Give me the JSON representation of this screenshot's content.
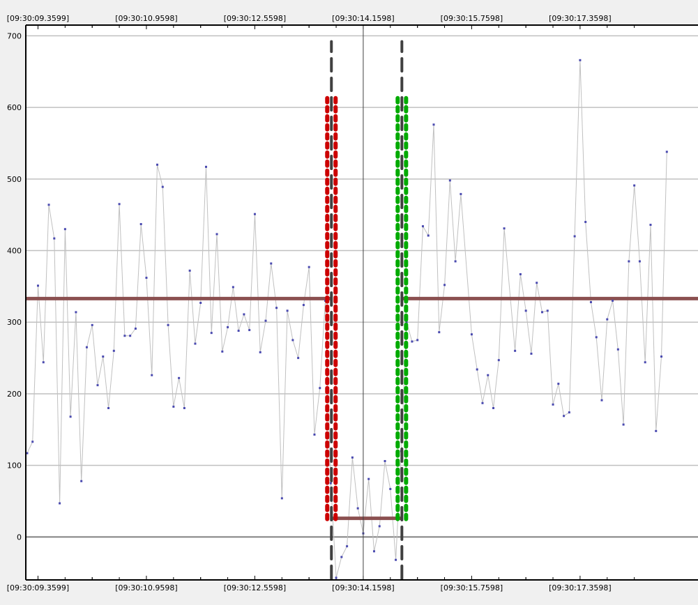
{
  "colors": {
    "background": "#f0f0f0",
    "plot_background": "#ffffff",
    "grid": "#c0c0c0",
    "zero_line": "#808080",
    "series_line": "#c0c0c0",
    "series_point": "#4a4ab0",
    "level_line": "#8b5050",
    "marker_red": "#cc0000",
    "marker_green": "#00aa00",
    "marker_dark": "#404040",
    "cursor": "#404040"
  },
  "chart_data": {
    "type": "line",
    "title": "",
    "xlabel": "",
    "ylabel": "",
    "ylim": [
      -60,
      715
    ],
    "y_ticks": [
      0,
      100,
      200,
      300,
      400,
      500,
      600,
      700
    ],
    "y_tick_labels": [
      "0",
      "100",
      "200",
      "300",
      "400",
      "500",
      "600",
      "700"
    ],
    "x_time_range": [
      "09:30:09.18",
      "09:30:19.10"
    ],
    "x_tick_times": [
      "09:30:09.3599",
      "09:30:10.9598",
      "09:30:12.5598",
      "09:30:14.1598",
      "09:30:15.7598",
      "09:30:17.3598"
    ],
    "x_tick_labels": [
      "[09:30:09.3599]",
      "[09:30:10.9598]",
      "[09:30:12.5598]",
      "[09:30:14.1598]",
      "[09:30:15.7598]",
      "[09:30:17.3598]"
    ],
    "grid": true,
    "cursor_time": "09:30:14.1598",
    "series": [
      {
        "points": [
          [
            "09:30:09.20",
            117
          ],
          [
            "09:30:09.28",
            133
          ],
          [
            "09:30:09.36",
            351
          ],
          [
            "09:30:09.44",
            244
          ],
          [
            "09:30:09.52",
            464
          ],
          [
            "09:30:09.60",
            417
          ],
          [
            "09:30:09.68",
            47
          ],
          [
            "09:30:09.76",
            430
          ],
          [
            "09:30:09.84",
            168
          ],
          [
            "09:30:09.92",
            314
          ],
          [
            "09:30:10.00",
            78
          ],
          [
            "09:30:10.08",
            265
          ],
          [
            "09:30:10.16",
            296
          ],
          [
            "09:30:10.24",
            212
          ],
          [
            "09:30:10.32",
            252
          ],
          [
            "09:30:10.40",
            180
          ],
          [
            "09:30:10.48",
            260
          ],
          [
            "09:30:10.56",
            465
          ],
          [
            "09:30:10.64",
            281
          ],
          [
            "09:30:10.72",
            281
          ],
          [
            "09:30:10.80",
            291
          ],
          [
            "09:30:10.88",
            437
          ],
          [
            "09:30:10.96",
            362
          ],
          [
            "09:30:11.04",
            226
          ],
          [
            "09:30:11.12",
            520
          ],
          [
            "09:30:11.20",
            489
          ],
          [
            "09:30:11.28",
            296
          ],
          [
            "09:30:11.36",
            182
          ],
          [
            "09:30:11.44",
            222
          ],
          [
            "09:30:11.52",
            180
          ],
          [
            "09:30:11.60",
            372
          ],
          [
            "09:30:11.68",
            270
          ],
          [
            "09:30:11.76",
            327
          ],
          [
            "09:30:11.84",
            517
          ],
          [
            "09:30:11.92",
            285
          ],
          [
            "09:30:12.00",
            423
          ],
          [
            "09:30:12.08",
            259
          ],
          [
            "09:30:12.16",
            293
          ],
          [
            "09:30:12.24",
            349
          ],
          [
            "09:30:12.32",
            288
          ],
          [
            "09:30:12.40",
            311
          ],
          [
            "09:30:12.48",
            289
          ],
          [
            "09:30:12.56",
            451
          ],
          [
            "09:30:12.64",
            258
          ],
          [
            "09:30:12.72",
            302
          ],
          [
            "09:30:12.80",
            382
          ],
          [
            "09:30:12.88",
            320
          ],
          [
            "09:30:12.96",
            54
          ],
          [
            "09:30:13.04",
            316
          ],
          [
            "09:30:13.12",
            275
          ],
          [
            "09:30:13.20",
            250
          ],
          [
            "09:30:13.28",
            324
          ],
          [
            "09:30:13.36",
            377
          ],
          [
            "09:30:13.44",
            143
          ],
          [
            "09:30:13.52",
            208
          ],
          [
            "09:30:13.60",
            330
          ],
          [
            "09:30:13.68",
            75
          ],
          [
            "09:30:13.76",
            -57
          ],
          [
            "09:30:13.84",
            -28
          ],
          [
            "09:30:13.92",
            -13
          ],
          [
            "09:30:14.00",
            111
          ],
          [
            "09:30:14.08",
            40
          ],
          [
            "09:30:14.16",
            5
          ],
          [
            "09:30:14.24",
            81
          ],
          [
            "09:30:14.32",
            -20
          ],
          [
            "09:30:14.40",
            15
          ],
          [
            "09:30:14.48",
            106
          ],
          [
            "09:30:14.56",
            67
          ],
          [
            "09:30:14.64",
            -32
          ],
          [
            "09:30:14.72",
            120
          ],
          [
            "09:30:14.80",
            300
          ],
          [
            "09:30:14.88",
            273
          ],
          [
            "09:30:14.96",
            275
          ],
          [
            "09:30:15.04",
            434
          ],
          [
            "09:30:15.12",
            421
          ],
          [
            "09:30:15.20",
            576
          ],
          [
            "09:30:15.28",
            286
          ],
          [
            "09:30:15.36",
            352
          ],
          [
            "09:30:15.44",
            498
          ],
          [
            "09:30:15.52",
            385
          ],
          [
            "09:30:15.60",
            479
          ],
          [
            "09:30:15.76",
            283
          ],
          [
            "09:30:15.84",
            234
          ],
          [
            "09:30:15.92",
            187
          ],
          [
            "09:30:16.00",
            226
          ],
          [
            "09:30:16.08",
            180
          ],
          [
            "09:30:16.16",
            247
          ],
          [
            "09:30:16.24",
            431
          ],
          [
            "09:30:16.40",
            260
          ],
          [
            "09:30:16.48",
            367
          ],
          [
            "09:30:16.56",
            316
          ],
          [
            "09:30:16.64",
            256
          ],
          [
            "09:30:16.72",
            355
          ],
          [
            "09:30:16.80",
            314
          ],
          [
            "09:30:16.88",
            316
          ],
          [
            "09:30:16.96",
            185
          ],
          [
            "09:30:17.04",
            214
          ],
          [
            "09:30:17.12",
            169
          ],
          [
            "09:30:17.20",
            174
          ],
          [
            "09:30:17.28",
            420
          ],
          [
            "09:30:17.36",
            666
          ],
          [
            "09:30:17.44",
            440
          ],
          [
            "09:30:17.52",
            328
          ],
          [
            "09:30:17.60",
            279
          ],
          [
            "09:30:17.68",
            191
          ],
          [
            "09:30:17.76",
            304
          ],
          [
            "09:30:17.84",
            330
          ],
          [
            "09:30:17.92",
            262
          ],
          [
            "09:30:18.00",
            157
          ],
          [
            "09:30:18.08",
            385
          ],
          [
            "09:30:18.16",
            491
          ],
          [
            "09:30:18.24",
            385
          ],
          [
            "09:30:18.32",
            244
          ],
          [
            "09:30:18.40",
            436
          ],
          [
            "09:30:18.48",
            148
          ],
          [
            "09:30:18.56",
            252
          ],
          [
            "09:30:18.64",
            538
          ]
        ]
      }
    ],
    "level_segments": [
      {
        "from": "09:30:09.18",
        "to": "09:30:13.69",
        "value": 333
      },
      {
        "from": "09:30:13.69",
        "to": "09:30:14.73",
        "value": 26
      },
      {
        "from": "09:30:14.73",
        "to": "09:30:19.10",
        "value": 333
      }
    ],
    "markers": [
      {
        "time": "09:30:13.69",
        "color": "red",
        "y_from": 25,
        "y_to": 618,
        "line_y_from": -58,
        "line_y_to": 692
      },
      {
        "time": "09:30:14.73",
        "color": "green",
        "y_from": 25,
        "y_to": 618,
        "line_y_from": -58,
        "line_y_to": 692
      }
    ]
  }
}
